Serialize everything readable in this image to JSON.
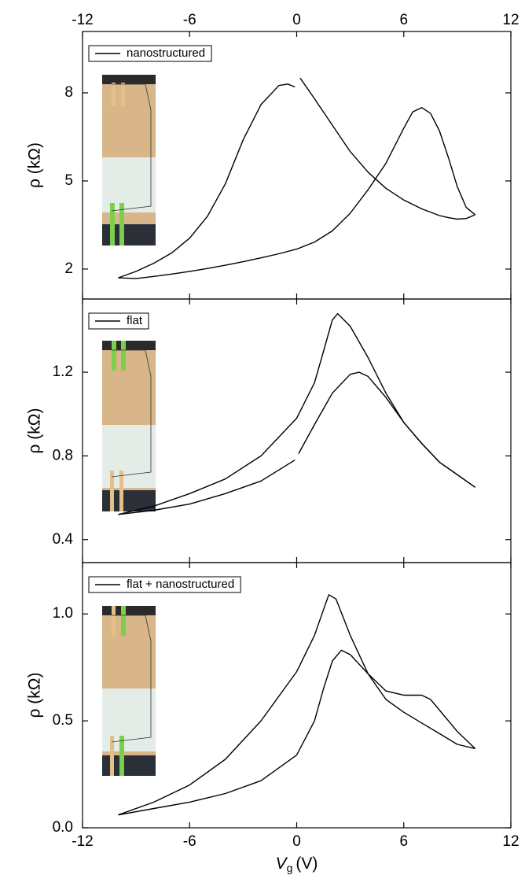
{
  "chart_data": [
    {
      "type": "line",
      "ylabel": "ρ (kΩ)",
      "xlim": [
        -12,
        12
      ],
      "xticks": [
        -12,
        -6,
        0,
        6,
        12
      ],
      "ylim": [
        0.98,
        10.09
      ],
      "yticks": [
        2,
        5,
        8
      ],
      "legend": "upper left",
      "series": [
        {
          "name": "nanostructured",
          "color": "#000000",
          "x": [
            -10,
            -9,
            -8,
            -7,
            -6,
            -5,
            -4,
            -3,
            -2,
            -1,
            0,
            1,
            2,
            3,
            4,
            5,
            6,
            6.5,
            7,
            7.5,
            8,
            8.5,
            9,
            9.5,
            10
          ],
          "values": [
            1.7,
            1.68,
            1.75,
            1.83,
            1.92,
            2.02,
            2.13,
            2.25,
            2.38,
            2.52,
            2.68,
            2.92,
            3.3,
            3.9,
            4.7,
            5.6,
            6.8,
            7.35,
            7.5,
            7.3,
            6.7,
            5.8,
            4.8,
            4.1,
            3.85
          ]
        },
        {
          "color": "#000000",
          "x": [
            10,
            9.5,
            9,
            8.5,
            8,
            7,
            6,
            5,
            4,
            3,
            2,
            1,
            0.2,
            0,
            -0.1,
            -0.5,
            -1,
            -2,
            -3,
            -4,
            -5,
            -6,
            -7,
            -8,
            -9,
            -10
          ],
          "values": [
            3.85,
            3.72,
            3.7,
            3.75,
            3.82,
            4.05,
            4.35,
            4.75,
            5.3,
            6.0,
            6.9,
            7.8,
            8.5,
            null,
            8.2,
            8.3,
            8.25,
            7.6,
            6.4,
            4.9,
            3.8,
            3.05,
            2.55,
            2.2,
            1.92,
            1.7
          ]
        }
      ]
    },
    {
      "type": "line",
      "ylabel": "ρ (kΩ)",
      "xlim": [
        -12,
        12
      ],
      "xticks": [
        -12,
        -6,
        0,
        6,
        12
      ],
      "ylim": [
        0.29,
        1.55
      ],
      "yticks": [
        0.4,
        0.8,
        1.2
      ],
      "legend": "upper left",
      "series": [
        {
          "name": "flat",
          "color": "#000000",
          "x": [
            -10,
            -8,
            -6,
            -4,
            -2,
            0,
            1,
            1.5,
            2,
            2.3,
            3,
            4,
            5,
            6,
            7,
            8,
            9,
            10
          ],
          "values": [
            0.52,
            0.56,
            0.62,
            0.69,
            0.8,
            0.98,
            1.15,
            1.3,
            1.45,
            1.48,
            1.42,
            1.27,
            1.1,
            0.96,
            0.86,
            0.77,
            0.71,
            0.65
          ]
        },
        {
          "color": "#000000",
          "x": [
            -10,
            -8,
            -6,
            -4,
            -2,
            -0.1,
            0,
            0.1,
            1,
            2,
            3,
            3.5,
            4,
            5,
            6,
            7,
            8,
            9,
            10
          ],
          "values": [
            0.52,
            0.54,
            0.57,
            0.62,
            0.68,
            0.78,
            null,
            0.81,
            0.95,
            1.1,
            1.19,
            1.2,
            1.18,
            1.08,
            0.96,
            0.86,
            0.77,
            0.71,
            0.65
          ]
        }
      ]
    },
    {
      "type": "line",
      "ylabel": "ρ (kΩ)",
      "xlabel": {
        "symbol": "V",
        "subscript": "g",
        "unit": "(V)"
      },
      "xlim": [
        -12,
        12
      ],
      "xticks": [
        -12,
        -6,
        0,
        6,
        12
      ],
      "ylim": [
        0,
        1.24
      ],
      "yticks": [
        {
          "value": 0,
          "label": "0.0"
        },
        0.5,
        {
          "value": 1,
          "label": "1.0"
        }
      ],
      "legend": "upper left",
      "series": [
        {
          "name": "flat + nanostructured",
          "color": "#000000",
          "x": [
            -10,
            -8,
            -6,
            -4,
            -2,
            0,
            1,
            1.5,
            1.8,
            2.2,
            3,
            4,
            5,
            6,
            7,
            8,
            9,
            10
          ],
          "values": [
            0.06,
            0.12,
            0.2,
            0.32,
            0.5,
            0.73,
            0.9,
            1.02,
            1.09,
            1.07,
            0.9,
            0.72,
            0.6,
            0.54,
            0.49,
            0.44,
            0.39,
            0.37
          ]
        },
        {
          "color": "#000000",
          "x": [
            -10,
            -8,
            -6,
            -4,
            -2,
            0,
            1,
            1.5,
            2,
            2.5,
            3,
            4,
            5,
            6,
            7,
            7.5,
            8,
            9,
            10
          ],
          "values": [
            0.06,
            0.09,
            0.12,
            0.16,
            0.22,
            0.34,
            0.5,
            0.65,
            0.78,
            0.83,
            0.81,
            0.72,
            0.64,
            0.62,
            0.62,
            0.6,
            0.55,
            0.45,
            0.37
          ]
        }
      ]
    }
  ]
}
